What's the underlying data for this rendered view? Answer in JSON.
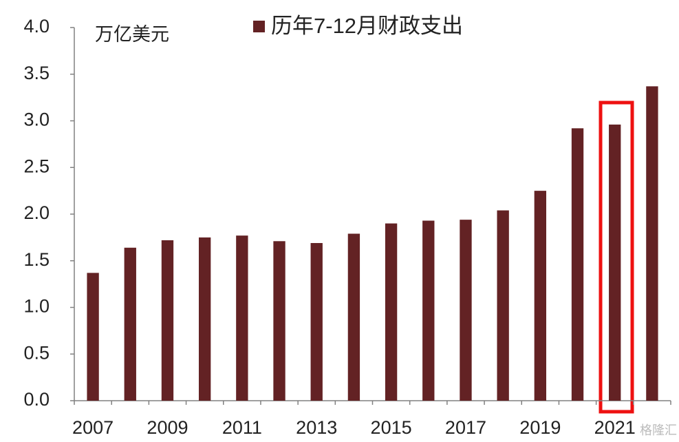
{
  "chart_data": {
    "type": "bar",
    "legend": "历年7-12月财政支出",
    "unit_label": "万亿美元",
    "watermark": "格隆汇",
    "categories": [
      "2007",
      null,
      "2009",
      null,
      "2011",
      null,
      "2013",
      null,
      "2015",
      null,
      "2017",
      null,
      "2019",
      null,
      "2021",
      null
    ],
    "values": [
      1.37,
      1.64,
      1.72,
      1.75,
      1.77,
      1.71,
      1.69,
      1.79,
      1.9,
      1.93,
      1.94,
      2.04,
      2.25,
      2.92,
      2.96,
      3.37
    ],
    "color": "#632224",
    "ylim": [
      0,
      4
    ],
    "yticks": [
      {
        "value": 0,
        "label": "0.0"
      },
      {
        "value": 0.5,
        "label": "0.5"
      },
      {
        "value": 1,
        "label": "1.0"
      },
      {
        "value": 1.5,
        "label": "1.5"
      },
      {
        "value": 2,
        "label": "2.0"
      },
      {
        "value": 2.5,
        "label": "2.5"
      },
      {
        "value": 3,
        "label": "3.0"
      },
      {
        "value": 3.5,
        "label": "3.5"
      },
      {
        "value": 4,
        "label": "4.0"
      }
    ],
    "grid": false
  }
}
